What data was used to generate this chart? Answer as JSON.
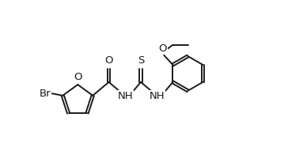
{
  "bg_color": "#ffffff",
  "line_color": "#1a1a1a",
  "line_width": 1.4,
  "font_size_atom": 9.5,
  "figsize": [
    3.64,
    1.96
  ],
  "dpi": 100,
  "xlim": [
    -0.5,
    9.5
  ],
  "ylim": [
    -0.2,
    5.8
  ]
}
